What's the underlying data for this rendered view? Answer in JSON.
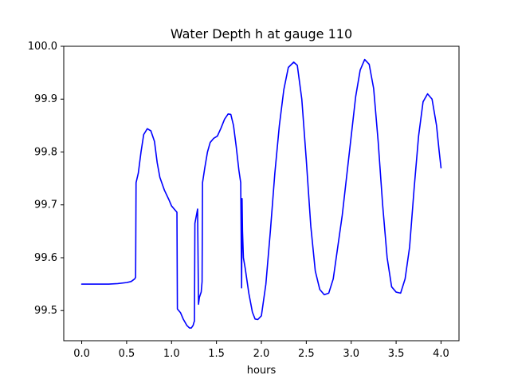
{
  "chart_data": {
    "type": "line",
    "title": "Water Depth h at gauge 110",
    "xlabel": "hours",
    "ylabel": "",
    "xlim": [
      -0.2,
      4.2
    ],
    "ylim": [
      99.443,
      100.0
    ],
    "xticks": [
      "0.0",
      "0.5",
      "1.0",
      "1.5",
      "2.0",
      "2.5",
      "3.0",
      "3.5",
      "4.0"
    ],
    "yticks": [
      "99.5",
      "99.6",
      "99.7",
      "99.8",
      "99.9",
      "100.0"
    ],
    "grid": false,
    "legend": "none",
    "series": [
      {
        "color": "#0000ff",
        "points": [
          [
            0.0,
            99.55
          ],
          [
            0.1,
            99.55
          ],
          [
            0.2,
            99.55
          ],
          [
            0.3,
            99.55
          ],
          [
            0.4,
            99.551
          ],
          [
            0.5,
            99.553
          ],
          [
            0.55,
            99.555
          ],
          [
            0.59,
            99.56
          ],
          [
            0.6,
            99.563
          ],
          [
            0.605,
            99.742
          ],
          [
            0.63,
            99.76
          ],
          [
            0.66,
            99.8
          ],
          [
            0.69,
            99.833
          ],
          [
            0.73,
            99.844
          ],
          [
            0.77,
            99.84
          ],
          [
            0.81,
            99.82
          ],
          [
            0.84,
            99.78
          ],
          [
            0.87,
            99.752
          ],
          [
            0.92,
            99.728
          ],
          [
            0.97,
            99.71
          ],
          [
            1.0,
            99.698
          ],
          [
            1.06,
            99.686
          ],
          [
            1.065,
            99.503
          ],
          [
            1.1,
            99.496
          ],
          [
            1.13,
            99.484
          ],
          [
            1.17,
            99.472
          ],
          [
            1.2,
            99.467
          ],
          [
            1.22,
            99.467
          ],
          [
            1.24,
            99.472
          ],
          [
            1.25,
            99.478
          ],
          [
            1.255,
            99.48
          ],
          [
            1.26,
            99.665
          ],
          [
            1.29,
            99.692
          ],
          [
            1.3,
            99.512
          ],
          [
            1.31,
            99.525
          ],
          [
            1.33,
            99.535
          ],
          [
            1.34,
            99.555
          ],
          [
            1.345,
            99.742
          ],
          [
            1.37,
            99.77
          ],
          [
            1.4,
            99.8
          ],
          [
            1.43,
            99.818
          ],
          [
            1.47,
            99.826
          ],
          [
            1.51,
            99.83
          ],
          [
            1.55,
            99.845
          ],
          [
            1.59,
            99.862
          ],
          [
            1.63,
            99.872
          ],
          [
            1.66,
            99.871
          ],
          [
            1.69,
            99.85
          ],
          [
            1.72,
            99.81
          ],
          [
            1.75,
            99.765
          ],
          [
            1.77,
            99.742
          ],
          [
            1.78,
            99.543
          ],
          [
            1.785,
            99.712
          ],
          [
            1.79,
            99.65
          ],
          [
            1.8,
            99.6
          ],
          [
            1.82,
            99.58
          ],
          [
            1.86,
            99.533
          ],
          [
            1.9,
            99.497
          ],
          [
            1.93,
            99.484
          ],
          [
            1.96,
            99.483
          ],
          [
            2.0,
            99.49
          ],
          [
            2.05,
            99.55
          ],
          [
            2.1,
            99.65
          ],
          [
            2.15,
            99.76
          ],
          [
            2.2,
            99.85
          ],
          [
            2.25,
            99.918
          ],
          [
            2.3,
            99.96
          ],
          [
            2.36,
            99.97
          ],
          [
            2.4,
            99.964
          ],
          [
            2.45,
            99.9
          ],
          [
            2.5,
            99.785
          ],
          [
            2.55,
            99.66
          ],
          [
            2.6,
            99.575
          ],
          [
            2.65,
            99.54
          ],
          [
            2.7,
            99.53
          ],
          [
            2.75,
            99.533
          ],
          [
            2.8,
            99.56
          ],
          [
            2.9,
            99.68
          ],
          [
            3.0,
            99.83
          ],
          [
            3.05,
            99.905
          ],
          [
            3.1,
            99.955
          ],
          [
            3.15,
            99.975
          ],
          [
            3.2,
            99.966
          ],
          [
            3.25,
            99.92
          ],
          [
            3.3,
            99.82
          ],
          [
            3.35,
            99.7
          ],
          [
            3.4,
            99.6
          ],
          [
            3.45,
            99.545
          ],
          [
            3.5,
            99.535
          ],
          [
            3.55,
            99.533
          ],
          [
            3.6,
            99.56
          ],
          [
            3.65,
            99.62
          ],
          [
            3.7,
            99.73
          ],
          [
            3.75,
            99.83
          ],
          [
            3.8,
            99.895
          ],
          [
            3.85,
            99.91
          ],
          [
            3.9,
            99.9
          ],
          [
            3.95,
            99.85
          ],
          [
            3.98,
            99.8
          ],
          [
            4.0,
            99.77
          ]
        ]
      }
    ]
  }
}
